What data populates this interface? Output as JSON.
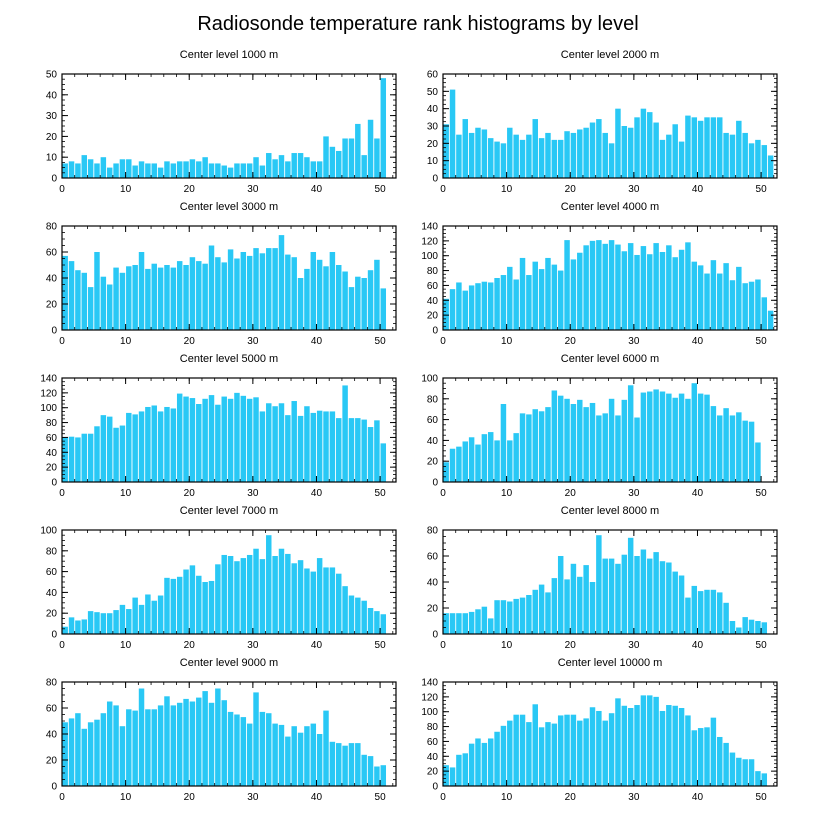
{
  "title": "Radiosonde temperature rank histograms by level",
  "colors": {
    "bar": "#29c8f5",
    "axis": "#000000",
    "background": "#ffffff"
  },
  "chart_data": [
    {
      "type": "bar",
      "title": "Center level 1000 m",
      "xticks": [
        0,
        10,
        20,
        30,
        40,
        50
      ],
      "xlim": [
        0,
        52.5
      ],
      "yticks": [
        0,
        10,
        20,
        30,
        40,
        50
      ],
      "ylim": [
        0,
        50
      ],
      "values": [
        7,
        8,
        7,
        11,
        9,
        7,
        10,
        5,
        7,
        9,
        9,
        6,
        8,
        7,
        7,
        5,
        8,
        7,
        8,
        8,
        9,
        8,
        10,
        7,
        7,
        6,
        5,
        7,
        7,
        7,
        10,
        6,
        12,
        9,
        11,
        8,
        12,
        12,
        10,
        8,
        8,
        20,
        15,
        13,
        19,
        19,
        26,
        11,
        28,
        19,
        48
      ]
    },
    {
      "type": "bar",
      "title": "Center level 2000 m",
      "xticks": [
        0,
        10,
        20,
        30,
        40,
        50
      ],
      "xlim": [
        0,
        52.5
      ],
      "yticks": [
        0,
        10,
        20,
        30,
        40,
        50,
        60
      ],
      "ylim": [
        0,
        60
      ],
      "values": [
        31,
        51,
        25,
        34,
        26,
        29,
        28,
        23,
        21,
        20,
        29,
        25,
        22,
        25,
        34,
        23,
        26,
        22,
        22,
        27,
        26,
        28,
        29,
        32,
        34,
        26,
        20,
        40,
        30,
        29,
        35,
        40,
        38,
        32,
        22,
        25,
        31,
        21,
        36,
        35,
        33,
        35,
        35,
        35,
        26,
        25,
        33,
        26,
        20,
        22,
        19,
        13
      ]
    },
    {
      "type": "bar",
      "title": "Center level 3000 m",
      "xticks": [
        0,
        10,
        20,
        30,
        40,
        50
      ],
      "xlim": [
        0,
        52.5
      ],
      "yticks": [
        0,
        20,
        40,
        60,
        80
      ],
      "ylim": [
        0,
        80
      ],
      "values": [
        57,
        53,
        46,
        44,
        33,
        60,
        41,
        35,
        48,
        44,
        49,
        50,
        60,
        47,
        51,
        48,
        50,
        48,
        53,
        50,
        56,
        53,
        51,
        65,
        56,
        52,
        62,
        55,
        60,
        57,
        63,
        59,
        63,
        63,
        73,
        58,
        56,
        40,
        47,
        60,
        54,
        49,
        60,
        50,
        45,
        33,
        41,
        40,
        46,
        54,
        32
      ]
    },
    {
      "type": "bar",
      "title": "Center level 4000 m",
      "xticks": [
        0,
        10,
        20,
        30,
        40,
        50
      ],
      "xlim": [
        0,
        52.5
      ],
      "yticks": [
        0,
        20,
        40,
        60,
        80,
        100,
        120,
        140
      ],
      "ylim": [
        0,
        140
      ],
      "values": [
        42,
        55,
        64,
        53,
        60,
        63,
        65,
        64,
        70,
        74,
        85,
        68,
        97,
        74,
        92,
        82,
        97,
        88,
        80,
        121,
        95,
        104,
        114,
        120,
        121,
        116,
        121,
        115,
        106,
        117,
        101,
        113,
        102,
        117,
        105,
        114,
        98,
        108,
        118,
        92,
        87,
        76,
        94,
        76,
        90,
        67,
        85,
        63,
        65,
        68,
        44,
        26
      ]
    },
    {
      "type": "bar",
      "title": "Center level 5000 m",
      "xticks": [
        0,
        10,
        20,
        30,
        40,
        50
      ],
      "xlim": [
        0,
        52.5
      ],
      "yticks": [
        0,
        20,
        40,
        60,
        80,
        100,
        120,
        140
      ],
      "ylim": [
        0,
        140
      ],
      "values": [
        60,
        61,
        60,
        65,
        65,
        75,
        90,
        88,
        73,
        76,
        93,
        91,
        95,
        101,
        103,
        95,
        101,
        99,
        119,
        115,
        113,
        105,
        112,
        117,
        104,
        115,
        112,
        120,
        116,
        112,
        114,
        95,
        106,
        102,
        106,
        90,
        109,
        89,
        102,
        93,
        96,
        95,
        95,
        86,
        130,
        86,
        86,
        84,
        74,
        83,
        52
      ]
    },
    {
      "type": "bar",
      "title": "Center level 6000 m",
      "xticks": [
        0,
        10,
        20,
        30,
        40,
        50
      ],
      "xlim": [
        0,
        52.5
      ],
      "yticks": [
        0,
        20,
        40,
        60,
        80,
        100
      ],
      "ylim": [
        0,
        100
      ],
      "values": [
        19,
        32,
        34,
        39,
        43,
        36,
        46,
        48,
        40,
        75,
        40,
        47,
        66,
        65,
        70,
        68,
        72,
        88,
        83,
        80,
        75,
        79,
        72,
        76,
        64,
        66,
        80,
        64,
        79,
        93,
        62,
        86,
        87,
        89,
        87,
        85,
        81,
        85,
        80,
        95,
        85,
        84,
        73,
        64,
        71,
        64,
        67,
        59,
        58,
        38
      ]
    },
    {
      "type": "bar",
      "title": "Center level 7000 m",
      "xticks": [
        0,
        10,
        20,
        30,
        40,
        50
      ],
      "xlim": [
        0,
        52.5
      ],
      "yticks": [
        0,
        20,
        40,
        60,
        80,
        100
      ],
      "ylim": [
        0,
        100
      ],
      "values": [
        7,
        16,
        13,
        14,
        22,
        21,
        20,
        20,
        23,
        28,
        24,
        35,
        28,
        38,
        32,
        37,
        54,
        53,
        55,
        62,
        66,
        56,
        50,
        51,
        67,
        76,
        75,
        70,
        73,
        76,
        82,
        72,
        95,
        75,
        82,
        77,
        68,
        71,
        63,
        60,
        73,
        64,
        64,
        58,
        46,
        37,
        35,
        32,
        25,
        22,
        19
      ]
    },
    {
      "type": "bar",
      "title": "Center level 8000 m",
      "xticks": [
        0,
        10,
        20,
        30,
        40,
        50
      ],
      "xlim": [
        0,
        52.5
      ],
      "yticks": [
        0,
        20,
        40,
        60,
        80
      ],
      "ylim": [
        0,
        80
      ],
      "values": [
        16,
        16,
        16,
        16,
        17,
        19,
        21,
        12,
        26,
        26,
        25,
        27,
        28,
        30,
        34,
        38,
        32,
        43,
        60,
        42,
        54,
        44,
        53,
        40,
        76,
        58,
        58,
        54,
        61,
        74,
        60,
        65,
        58,
        63,
        56,
        55,
        48,
        45,
        28,
        37,
        33,
        34,
        34,
        32,
        24,
        10,
        5,
        13,
        11,
        10,
        9
      ]
    },
    {
      "type": "bar",
      "title": "Center level 9000 m",
      "xticks": [
        0,
        10,
        20,
        30,
        40,
        50
      ],
      "xlim": [
        0,
        52.5
      ],
      "yticks": [
        0,
        20,
        40,
        60,
        80
      ],
      "ylim": [
        0,
        80
      ],
      "values": [
        49,
        52,
        56,
        44,
        49,
        51,
        56,
        65,
        62,
        46,
        59,
        58,
        75,
        59,
        59,
        62,
        69,
        62,
        64,
        67,
        65,
        68,
        73,
        64,
        75,
        66,
        57,
        55,
        53,
        48,
        72,
        57,
        56,
        48,
        47,
        38,
        46,
        41,
        46,
        48,
        40,
        58,
        34,
        33,
        31,
        33,
        33,
        24,
        23,
        15,
        16
      ]
    },
    {
      "type": "bar",
      "title": "Center level 10000 m",
      "xticks": [
        0,
        10,
        20,
        30,
        40,
        50
      ],
      "xlim": [
        0,
        52.5
      ],
      "yticks": [
        0,
        20,
        40,
        60,
        80,
        100,
        120,
        140
      ],
      "ylim": [
        0,
        140
      ],
      "values": [
        28,
        25,
        42,
        44,
        57,
        64,
        58,
        64,
        73,
        81,
        88,
        96,
        96,
        86,
        110,
        79,
        86,
        84,
        95,
        96,
        96,
        88,
        91,
        106,
        101,
        88,
        98,
        118,
        108,
        105,
        109,
        122,
        122,
        120,
        101,
        109,
        108,
        105,
        95,
        75,
        78,
        79,
        92,
        66,
        58,
        45,
        38,
        36,
        36,
        20,
        17
      ]
    }
  ]
}
